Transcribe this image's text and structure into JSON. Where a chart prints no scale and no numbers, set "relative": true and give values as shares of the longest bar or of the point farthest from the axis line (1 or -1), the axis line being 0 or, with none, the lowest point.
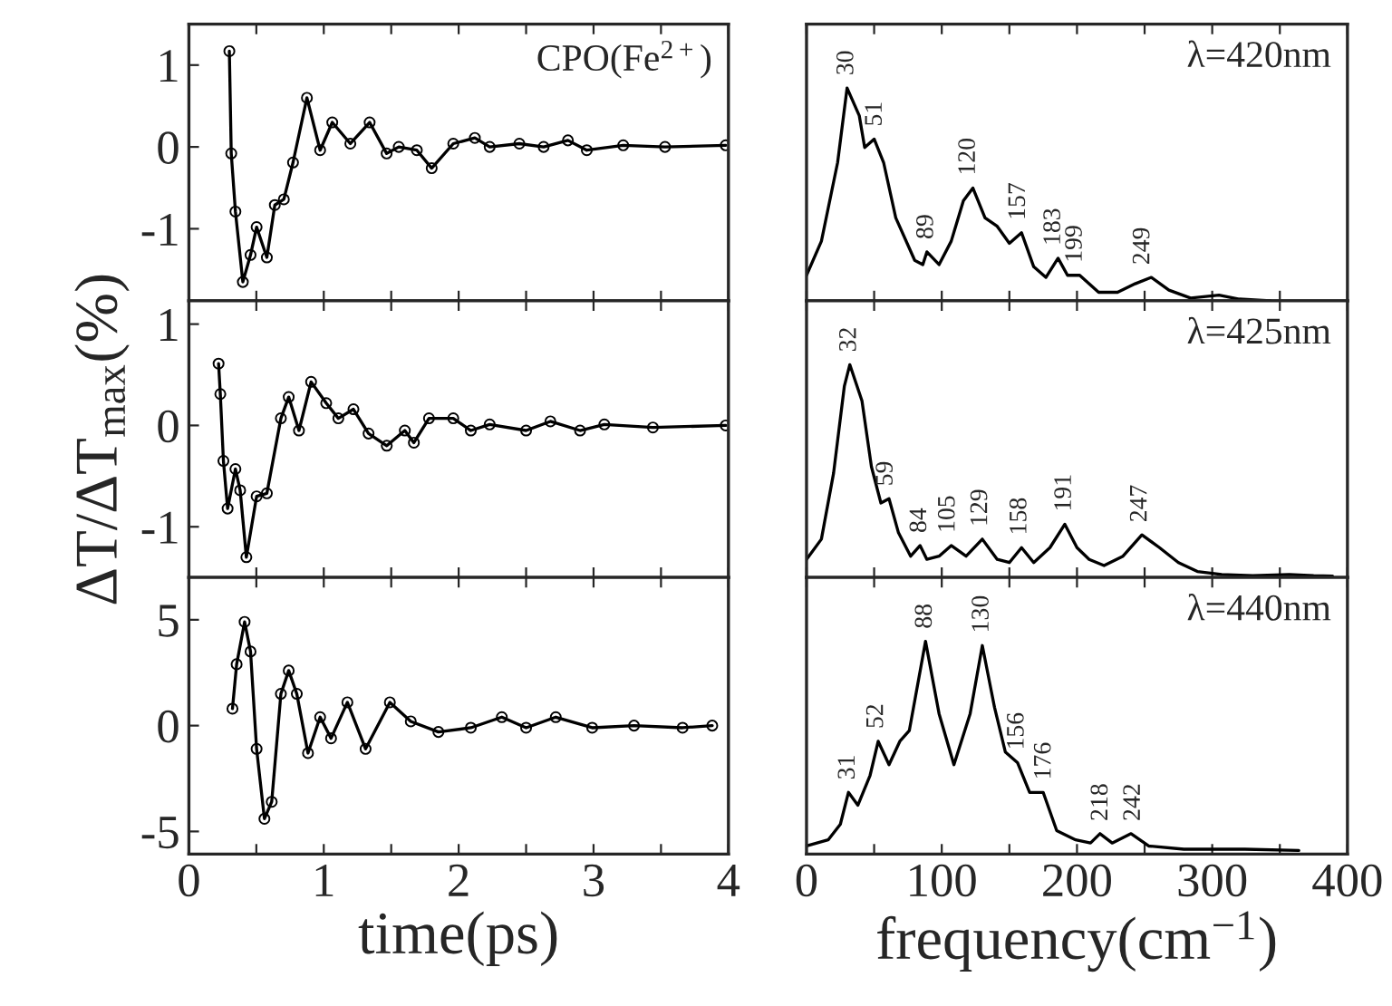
{
  "chart_data": [
    {
      "type": "line",
      "marker": "circle",
      "line_style": "solid",
      "tick_labels": "y",
      "xlim": [
        0,
        4
      ],
      "xticks": [
        {
          "value": 0,
          "label": null
        },
        {
          "value": 0.5,
          "label": null
        },
        {
          "value": 1,
          "label": null
        },
        {
          "value": 1.5,
          "label": null
        },
        {
          "value": 2,
          "label": null
        },
        {
          "value": 2.5,
          "label": null
        },
        {
          "value": 3,
          "label": null
        },
        {
          "value": 3.5,
          "label": null
        },
        {
          "value": 4,
          "label": null
        }
      ],
      "ylim": [
        -1.88,
        1.5
      ],
      "yticks": [
        -1,
        0,
        1
      ],
      "annotations": [
        "CPO(Fe$^{2+}$)"
      ],
      "series": [
        {
          "color": "#000000",
          "x": [
            0.3,
            0.314,
            0.345,
            0.4,
            0.457,
            0.502,
            0.578,
            0.637,
            0.704,
            0.772,
            0.875,
            0.973,
            1.063,
            1.197,
            1.34,
            1.466,
            1.556,
            1.69,
            1.8,
            1.96,
            2.12,
            2.23,
            2.45,
            2.63,
            2.81,
            2.95,
            3.22,
            3.53,
            3.98
          ],
          "values": [
            1.17,
            -0.08,
            -0.79,
            -1.65,
            -1.32,
            -0.98,
            -1.35,
            -0.71,
            -0.64,
            -0.19,
            0.6,
            -0.04,
            0.3,
            0.04,
            0.3,
            -0.08,
            0,
            -0.04,
            -0.26,
            0.04,
            0.11,
            0,
            0.04,
            0,
            0.08,
            -0.04,
            0.02,
            0,
            0.02
          ]
        }
      ]
    },
    {
      "type": "line",
      "relative": true,
      "tick_labels": false,
      "line_style": "solid",
      "xlim": [
        0,
        400
      ],
      "xticks": [
        {
          "value": 0,
          "label": null
        },
        {
          "value": 50,
          "label": null
        },
        {
          "value": 100,
          "label": null
        },
        {
          "value": 150,
          "label": null
        },
        {
          "value": 200,
          "label": null
        },
        {
          "value": 250,
          "label": null
        },
        {
          "value": 300,
          "label": null
        },
        {
          "value": 350,
          "label": null
        },
        {
          "value": 400,
          "label": null
        }
      ],
      "annotations": [
        "λ=420nm",
        {
          "text": "30",
          "x": 30,
          "y": 1.0
        },
        {
          "text": "51",
          "x": 51,
          "y": 0.76
        },
        {
          "text": "89",
          "x": 89,
          "y": 0.23
        },
        {
          "text": "120",
          "x": 120,
          "y": 0.53
        },
        {
          "text": "157",
          "x": 157,
          "y": 0.32
        },
        {
          "text": "183",
          "x": 183,
          "y": 0.2
        },
        {
          "text": "199",
          "x": 199,
          "y": 0.12
        },
        {
          "text": "249",
          "x": 249,
          "y": 0.11
        }
      ],
      "series": [
        {
          "color": "#000000",
          "x": [
            0,
            11,
            23,
            30,
            39,
            43,
            50,
            57,
            66,
            80,
            86,
            89,
            98,
            107,
            116,
            123,
            132,
            141,
            150,
            159,
            168,
            177,
            186,
            193,
            202,
            216,
            230,
            243,
            255,
            268,
            284,
            305,
            320,
            343
          ],
          "values": [
            0.12,
            0.28,
            0.65,
            1.0,
            0.87,
            0.72,
            0.76,
            0.65,
            0.39,
            0.19,
            0.17,
            0.23,
            0.17,
            0.28,
            0.47,
            0.53,
            0.39,
            0.35,
            0.27,
            0.32,
            0.16,
            0.11,
            0.2,
            0.12,
            0.12,
            0.04,
            0.04,
            0.08,
            0.11,
            0.05,
            0.013,
            0.027,
            0.008,
            0
          ]
        }
      ]
    },
    {
      "type": "line",
      "marker": "circle",
      "line_style": "solid",
      "tick_labels": "y",
      "ylabel": "ΔT/ΔT$_{max}$(%)",
      "xlim": [
        0,
        4
      ],
      "xticks": [
        {
          "value": 0,
          "label": null
        },
        {
          "value": 0.5,
          "label": null
        },
        {
          "value": 1,
          "label": null
        },
        {
          "value": 1.5,
          "label": null
        },
        {
          "value": 2,
          "label": null
        },
        {
          "value": 2.5,
          "label": null
        },
        {
          "value": 3,
          "label": null
        },
        {
          "value": 3.5,
          "label": null
        },
        {
          "value": 4,
          "label": null
        }
      ],
      "ylim": [
        -1.5,
        1.23
      ],
      "yticks": [
        -1,
        0,
        1
      ],
      "series": [
        {
          "color": "#000000",
          "x": [
            0.22,
            0.233,
            0.256,
            0.287,
            0.345,
            0.38,
            0.426,
            0.502,
            0.578,
            0.682,
            0.74,
            0.816,
            0.906,
            1.018,
            1.108,
            1.22,
            1.332,
            1.467,
            1.601,
            1.668,
            1.78,
            1.96,
            2.09,
            2.23,
            2.5,
            2.68,
            2.9,
            3.08,
            3.44,
            3.98
          ],
          "values": [
            0.61,
            0.31,
            -0.35,
            -0.82,
            -0.43,
            -0.64,
            -1.3,
            -0.7,
            -0.67,
            0.07,
            0.28,
            -0.05,
            0.43,
            0.22,
            0.07,
            0.16,
            -0.08,
            -0.2,
            -0.05,
            -0.17,
            0.07,
            0.07,
            -0.05,
            0.01,
            -0.05,
            0.04,
            -0.05,
            0.01,
            -0.02,
            0
          ]
        }
      ]
    },
    {
      "type": "line",
      "relative": true,
      "tick_labels": false,
      "line_style": "solid",
      "xlim": [
        0,
        400
      ],
      "xticks": [
        {
          "value": 0,
          "label": null
        },
        {
          "value": 50,
          "label": null
        },
        {
          "value": 100,
          "label": null
        },
        {
          "value": 150,
          "label": null
        },
        {
          "value": 200,
          "label": null
        },
        {
          "value": 250,
          "label": null
        },
        {
          "value": 300,
          "label": null
        },
        {
          "value": 350,
          "label": null
        },
        {
          "value": 400,
          "label": null
        }
      ],
      "annotations": [
        "λ=425nm",
        {
          "text": "32",
          "x": 32,
          "y": 1.0
        },
        {
          "text": "59",
          "x": 59,
          "y": 0.37
        },
        {
          "text": "84",
          "x": 84,
          "y": 0.15
        },
        {
          "text": "105",
          "x": 105,
          "y": 0.15
        },
        {
          "text": "129",
          "x": 129,
          "y": 0.18
        },
        {
          "text": "158",
          "x": 158,
          "y": 0.14
        },
        {
          "text": "191",
          "x": 191,
          "y": 0.25
        },
        {
          "text": "247",
          "x": 247,
          "y": 0.2
        }
      ],
      "series": [
        {
          "color": "#000000",
          "x": [
            0,
            11,
            20,
            28,
            32,
            41,
            48,
            55,
            61,
            68,
            77,
            84,
            89,
            98,
            107,
            118,
            130,
            141,
            150,
            159,
            168,
            180,
            191,
            200,
            209,
            220,
            234,
            248,
            261,
            275,
            289,
            307,
            330,
            357,
            375,
            389
          ],
          "values": [
            0.085,
            0.18,
            0.49,
            0.9,
            1.0,
            0.83,
            0.52,
            0.35,
            0.37,
            0.21,
            0.1,
            0.15,
            0.085,
            0.1,
            0.15,
            0.1,
            0.18,
            0.085,
            0.07,
            0.14,
            0.07,
            0.14,
            0.25,
            0.14,
            0.085,
            0.056,
            0.1,
            0.2,
            0.14,
            0.07,
            0.028,
            0.014,
            0.008,
            0.014,
            0.008,
            0.006
          ]
        }
      ]
    },
    {
      "type": "line",
      "marker": "circle",
      "line_style": "solid",
      "xlabel": "time(ps)",
      "xlim": [
        0,
        4
      ],
      "xticks": [
        0,
        {
          "value": 0.5,
          "label": null
        },
        1,
        {
          "value": 1.5,
          "label": null
        },
        2,
        {
          "value": 2.5,
          "label": null
        },
        3,
        {
          "value": 3.5,
          "label": null
        },
        4
      ],
      "ylim": [
        -6.07,
        7.0
      ],
      "yticks": [
        -5,
        0,
        5
      ],
      "series": [
        {
          "color": "#000000",
          "x": [
            0.323,
            0.354,
            0.413,
            0.457,
            0.502,
            0.56,
            0.614,
            0.682,
            0.74,
            0.8,
            0.883,
            0.973,
            1.054,
            1.175,
            1.31,
            1.49,
            1.645,
            1.85,
            2.09,
            2.32,
            2.5,
            2.72,
            2.99,
            3.3,
            3.66,
            3.88
          ],
          "values": [
            0.8,
            2.9,
            4.9,
            3.5,
            -1.1,
            -4.4,
            -3.6,
            1.5,
            2.6,
            1.5,
            -1.3,
            0.4,
            -0.6,
            1.1,
            -1.1,
            1.1,
            0.2,
            -0.3,
            -0.1,
            0.4,
            -0.1,
            0.4,
            -0.1,
            0,
            -0.1,
            0
          ]
        }
      ]
    },
    {
      "type": "line",
      "relative": true,
      "tick_labels": "x",
      "line_style": "solid",
      "xlabel": "frequency(cm$^{−1}$)",
      "xlim": [
        0,
        400
      ],
      "xticks": [
        0,
        {
          "value": 50,
          "label": null
        },
        100,
        {
          "value": 150,
          "label": null
        },
        200,
        {
          "value": 250,
          "label": null
        },
        300,
        {
          "value": 350,
          "label": null
        },
        400
      ],
      "annotations": [
        "λ=440nm",
        {
          "text": "31",
          "x": 31,
          "y": 0.29
        },
        {
          "text": "52",
          "x": 52,
          "y": 0.53
        },
        {
          "text": "88",
          "x": 88,
          "y": 1.0
        },
        {
          "text": "130",
          "x": 130,
          "y": 0.98
        },
        {
          "text": "156",
          "x": 156,
          "y": 0.43
        },
        {
          "text": "176",
          "x": 176,
          "y": 0.29
        },
        {
          "text": "218",
          "x": 218,
          "y": 0.096
        },
        {
          "text": "242",
          "x": 242,
          "y": 0.096
        }
      ],
      "series": [
        {
          "color": "#000000",
          "x": [
            0,
            16,
            25,
            31,
            38,
            47,
            53,
            61,
            69,
            76,
            88,
            98,
            109,
            121,
            130,
            139,
            147,
            156,
            165,
            175,
            185,
            199,
            210,
            217,
            226,
            240,
            253,
            279,
            324,
            364
          ],
          "values": [
            0.038,
            0.067,
            0.14,
            0.29,
            0.23,
            0.37,
            0.53,
            0.42,
            0.53,
            0.58,
            1.0,
            0.66,
            0.42,
            0.66,
            0.98,
            0.69,
            0.48,
            0.43,
            0.29,
            0.29,
            0.11,
            0.067,
            0.052,
            0.096,
            0.052,
            0.096,
            0.038,
            0.023,
            0.023,
            0.017
          ]
        }
      ]
    }
  ]
}
